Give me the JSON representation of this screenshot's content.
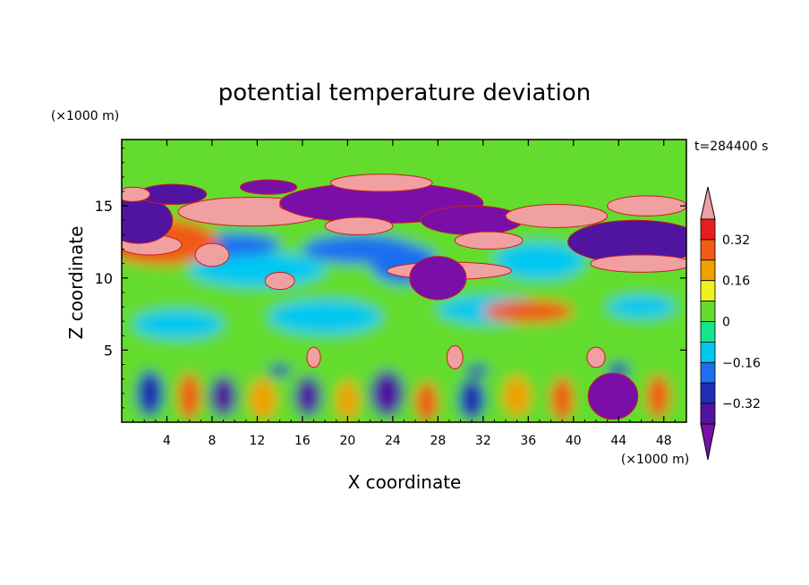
{
  "chart_data": {
    "type": "heatmap",
    "title": "potential temperature deviation",
    "xlabel": "X coordinate",
    "ylabel": "Z coordinate",
    "x_unit": "(×1000 m)",
    "y_unit": "(×1000 m)",
    "time_label": "t=284400 s",
    "xlim": [
      0,
      50
    ],
    "ylim": [
      0,
      19.6
    ],
    "x_ticks": [
      4,
      8,
      12,
      16,
      20,
      24,
      28,
      32,
      36,
      40,
      44,
      48
    ],
    "y_ticks": [
      5,
      10,
      15
    ],
    "colorbar": {
      "levels": [
        -0.48,
        -0.4,
        -0.32,
        -0.24,
        -0.16,
        -0.08,
        0,
        0.08,
        0.16,
        0.24,
        0.32,
        0.4
      ],
      "labeled_ticks": [
        0.32,
        0.16,
        0,
        -0.16,
        -0.32
      ],
      "colors": [
        "#7a0fa8",
        "#5014a0",
        "#1e2fb4",
        "#1e6ef0",
        "#00c8f0",
        "#14e68c",
        "#64dc2d",
        "#f0f01e",
        "#f0a000",
        "#f05a14",
        "#e61e1e",
        "#f0a0a0"
      ],
      "extend": "both"
    },
    "features": [
      {
        "shape": "band",
        "x": [
          0,
          50
        ],
        "y": [
          0,
          19.6
        ],
        "value": 0.02
      },
      {
        "shape": "band",
        "x": [
          0,
          50
        ],
        "y": [
          0,
          9
        ],
        "value": 0.06
      },
      {
        "shape": "blob",
        "cx": 5,
        "cy": 6.8,
        "rx": 4,
        "ry": 1.0,
        "value": -0.1
      },
      {
        "shape": "blob",
        "cx": 18,
        "cy": 7.3,
        "rx": 5,
        "ry": 1.2,
        "value": -0.1
      },
      {
        "shape": "blob",
        "cx": 33,
        "cy": 7.8,
        "rx": 5,
        "ry": 1.0,
        "value": -0.1
      },
      {
        "shape": "blob",
        "cx": 46,
        "cy": 8.0,
        "rx": 3,
        "ry": 0.8,
        "value": -0.1
      },
      {
        "shape": "blob",
        "cx": 37,
        "cy": 11.2,
        "rx": 4,
        "ry": 1.3,
        "value": -0.1
      },
      {
        "shape": "blob",
        "cx": 12,
        "cy": 10.6,
        "rx": 6,
        "ry": 1.2,
        "value": -0.14
      },
      {
        "shape": "blob",
        "cx": 25,
        "cy": 11.0,
        "rx": 3,
        "ry": 1.4,
        "value": -0.18
      },
      {
        "shape": "blob",
        "cx": 21,
        "cy": 12.0,
        "rx": 5,
        "ry": 1.0,
        "value": -0.2
      },
      {
        "shape": "blob",
        "cx": 10,
        "cy": 12.3,
        "rx": 4,
        "ry": 0.8,
        "value": -0.18
      },
      {
        "shape": "blob",
        "cx": 3.5,
        "cy": 12.5,
        "rx": 5,
        "ry": 1.6,
        "value": 0.26
      },
      {
        "shape": "blob",
        "cx": 2.5,
        "cy": 12.3,
        "rx": 2.8,
        "ry": 0.7,
        "value": 0.42
      },
      {
        "shape": "blob",
        "cx": 1.5,
        "cy": 14.0,
        "rx": 3.0,
        "ry": 1.6,
        "value": -0.4
      },
      {
        "shape": "blob",
        "cx": 11.5,
        "cy": 14.6,
        "rx": 6.5,
        "ry": 1.0,
        "value": 0.42
      },
      {
        "shape": "blob",
        "cx": 4.5,
        "cy": 15.8,
        "rx": 3.0,
        "ry": 0.7,
        "value": -0.38
      },
      {
        "shape": "blob",
        "cx": 1.0,
        "cy": 15.8,
        "rx": 1.5,
        "ry": 0.5,
        "value": 0.42
      },
      {
        "shape": "blob",
        "cx": 17.0,
        "cy": 15.0,
        "rx": 3.0,
        "ry": 0.5,
        "value": 0.42
      },
      {
        "shape": "blob",
        "cx": 23.0,
        "cy": 15.2,
        "rx": 9.0,
        "ry": 1.4,
        "value": -0.48
      },
      {
        "shape": "blob",
        "cx": 23.0,
        "cy": 16.6,
        "rx": 4.5,
        "ry": 0.6,
        "value": 0.42
      },
      {
        "shape": "blob",
        "cx": 13.0,
        "cy": 16.3,
        "rx": 2.5,
        "ry": 0.5,
        "value": -0.42
      },
      {
        "shape": "blob",
        "cx": 21.0,
        "cy": 13.6,
        "rx": 3.0,
        "ry": 0.6,
        "value": 0.42
      },
      {
        "shape": "blob",
        "cx": 31.0,
        "cy": 14.0,
        "rx": 4.5,
        "ry": 1.0,
        "value": -0.48
      },
      {
        "shape": "blob",
        "cx": 29.0,
        "cy": 10.5,
        "rx": 5.5,
        "ry": 0.6,
        "value": 0.42
      },
      {
        "shape": "blob",
        "cx": 32.5,
        "cy": 12.6,
        "rx": 3.0,
        "ry": 0.6,
        "value": 0.42
      },
      {
        "shape": "blob",
        "cx": 38.5,
        "cy": 14.3,
        "rx": 4.5,
        "ry": 0.8,
        "value": 0.42
      },
      {
        "shape": "blob",
        "cx": 45.5,
        "cy": 12.5,
        "rx": 6.0,
        "ry": 1.5,
        "value": -0.4
      },
      {
        "shape": "blob",
        "cx": 46.5,
        "cy": 15.0,
        "rx": 3.5,
        "ry": 0.7,
        "value": 0.42
      },
      {
        "shape": "blob",
        "cx": 46.0,
        "cy": 11.0,
        "rx": 4.5,
        "ry": 0.6,
        "value": 0.42
      },
      {
        "shape": "blob",
        "cx": 36.0,
        "cy": 7.7,
        "rx": 4.0,
        "ry": 0.8,
        "value": 0.24
      },
      {
        "shape": "blob",
        "cx": 14.0,
        "cy": 9.8,
        "rx": 1.3,
        "ry": 0.6,
        "value": 0.4
      },
      {
        "shape": "blob",
        "cx": 8.0,
        "cy": 11.6,
        "rx": 1.5,
        "ry": 0.8,
        "value": 0.4
      },
      {
        "shape": "blob",
        "cx": 28.0,
        "cy": 10.0,
        "rx": 2.5,
        "ry": 1.5,
        "value": -0.42
      },
      {
        "shape": "blob",
        "cx": 2.5,
        "cy": 2.0,
        "rx": 1.2,
        "ry": 1.6,
        "value": -0.32
      },
      {
        "shape": "blob",
        "cx": 6.0,
        "cy": 1.8,
        "rx": 1.0,
        "ry": 1.6,
        "value": 0.24
      },
      {
        "shape": "blob",
        "cx": 9.0,
        "cy": 1.8,
        "rx": 1.2,
        "ry": 1.4,
        "value": -0.34
      },
      {
        "shape": "blob",
        "cx": 12.5,
        "cy": 1.6,
        "rx": 1.2,
        "ry": 1.4,
        "value": 0.22
      },
      {
        "shape": "blob",
        "cx": 16.5,
        "cy": 1.8,
        "rx": 1.2,
        "ry": 1.4,
        "value": -0.34
      },
      {
        "shape": "blob",
        "cx": 20.0,
        "cy": 1.5,
        "rx": 1.0,
        "ry": 1.4,
        "value": 0.2
      },
      {
        "shape": "blob",
        "cx": 23.5,
        "cy": 2.0,
        "rx": 1.5,
        "ry": 1.6,
        "value": -0.34
      },
      {
        "shape": "blob",
        "cx": 27.0,
        "cy": 1.4,
        "rx": 1.0,
        "ry": 1.4,
        "value": 0.24
      },
      {
        "shape": "blob",
        "cx": 31.0,
        "cy": 1.6,
        "rx": 1.2,
        "ry": 1.4,
        "value": -0.3
      },
      {
        "shape": "blob",
        "cx": 35.0,
        "cy": 1.8,
        "rx": 1.2,
        "ry": 1.4,
        "value": 0.2
      },
      {
        "shape": "blob",
        "cx": 39.0,
        "cy": 1.6,
        "rx": 1.0,
        "ry": 1.5,
        "value": 0.26
      },
      {
        "shape": "blob",
        "cx": 43.5,
        "cy": 1.8,
        "rx": 2.2,
        "ry": 1.6,
        "value": -0.44
      },
      {
        "shape": "blob",
        "cx": 47.5,
        "cy": 1.8,
        "rx": 1.0,
        "ry": 1.5,
        "value": 0.24
      },
      {
        "shape": "blob",
        "cx": 14.0,
        "cy": 3.6,
        "rx": 1.0,
        "ry": 0.4,
        "value": -0.3
      },
      {
        "shape": "blob",
        "cx": 31.5,
        "cy": 3.6,
        "rx": 1.0,
        "ry": 0.4,
        "value": -0.3
      },
      {
        "shape": "blob",
        "cx": 44.0,
        "cy": 3.6,
        "rx": 1.0,
        "ry": 0.5,
        "value": -0.3
      },
      {
        "shape": "blob",
        "cx": 29.5,
        "cy": 4.5,
        "rx": 0.7,
        "ry": 0.8,
        "value": 0.4
      },
      {
        "shape": "blob",
        "cx": 17.0,
        "cy": 4.5,
        "rx": 0.6,
        "ry": 0.7,
        "value": 0.4
      },
      {
        "shape": "blob",
        "cx": 42.0,
        "cy": 4.5,
        "rx": 0.8,
        "ry": 0.7,
        "value": 0.4
      }
    ]
  }
}
